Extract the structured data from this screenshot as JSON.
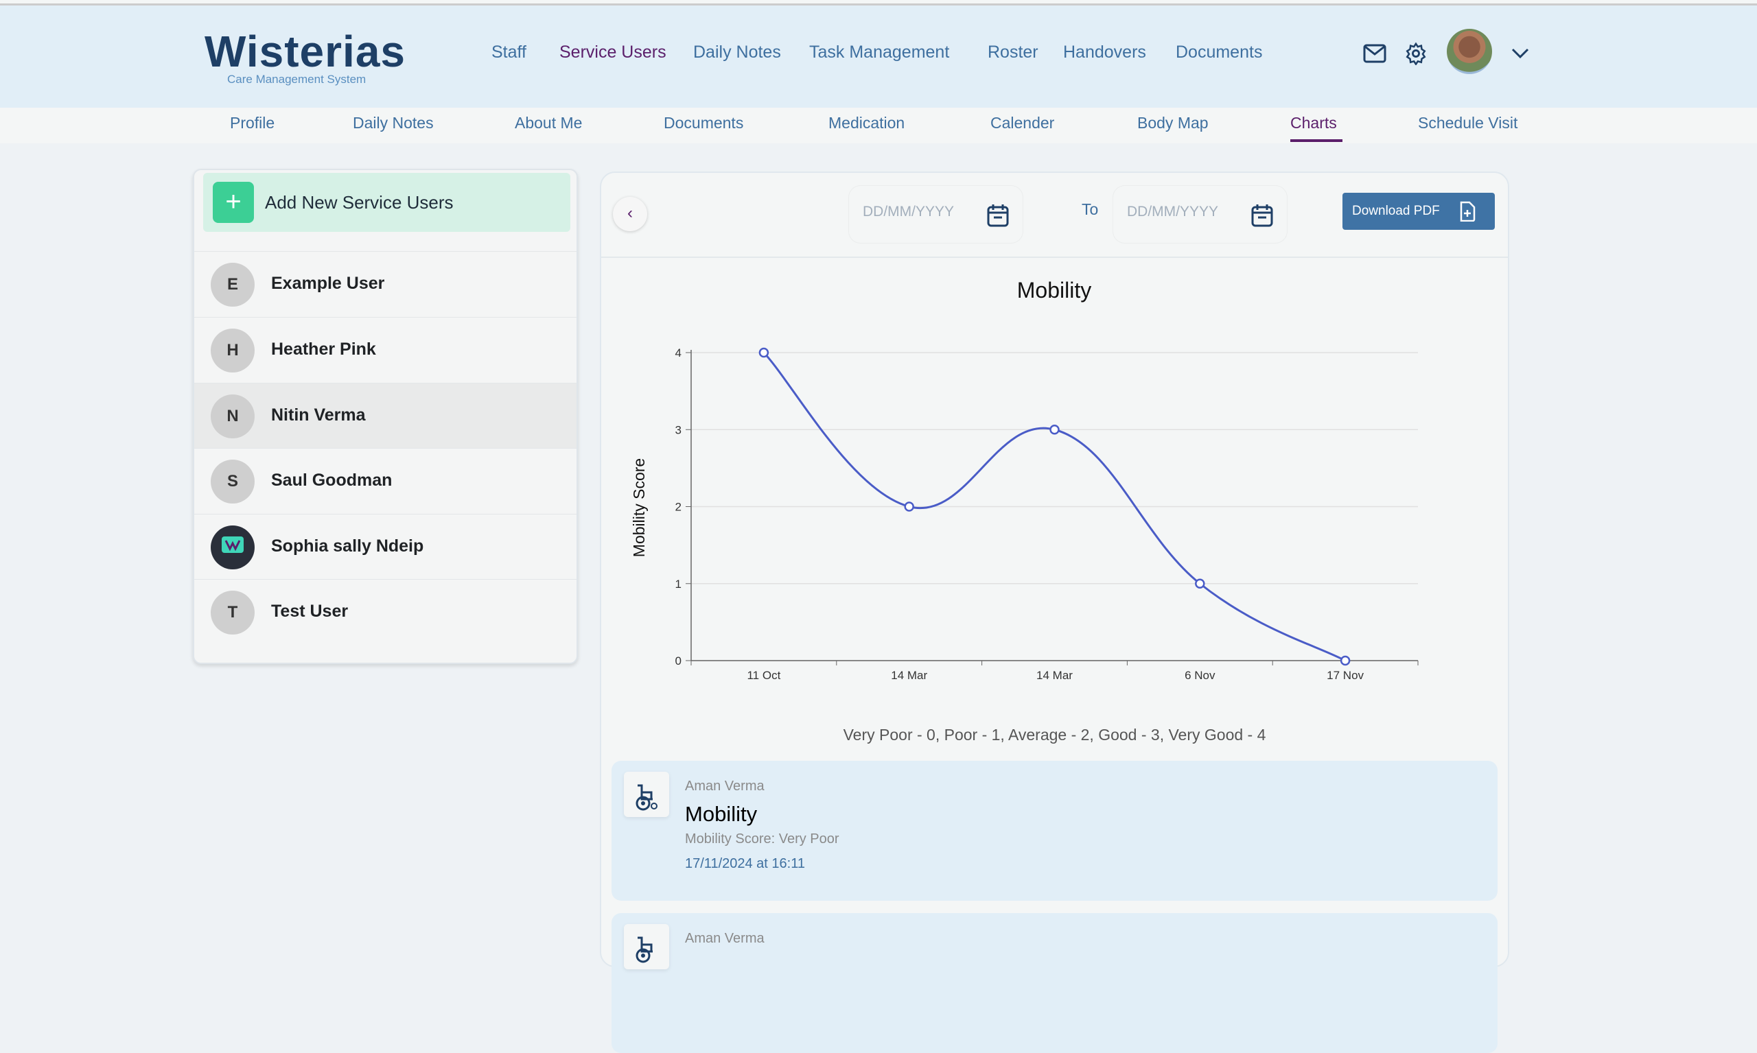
{
  "logo": {
    "name": "Wisterias",
    "tagline": "Care Management System"
  },
  "nav": {
    "items": [
      "Staff",
      "Service Users",
      "Daily Notes",
      "Task Management",
      "Roster",
      "Handovers",
      "Documents"
    ],
    "active": "Service Users"
  },
  "subnav": {
    "items": [
      "Profile",
      "Daily Notes",
      "About Me",
      "Documents",
      "Medication",
      "Calender",
      "Body Map",
      "Charts",
      "Schedule Visit"
    ],
    "active": "Charts"
  },
  "sidebar": {
    "add_label": "Add New Service Users",
    "users": [
      {
        "initial": "E",
        "name": "Example User"
      },
      {
        "initial": "H",
        "name": "Heather Pink"
      },
      {
        "initial": "N",
        "name": "Nitin Verma",
        "selected": true
      },
      {
        "initial": "S",
        "name": "Saul Goodman"
      },
      {
        "initial": "",
        "name": "Sophia sally Ndeip",
        "avatar": "image"
      },
      {
        "initial": "T",
        "name": "Test User"
      }
    ]
  },
  "filters": {
    "from_placeholder": "DD/MM/YYYY",
    "to_label": "To",
    "to_placeholder": "DD/MM/YYYY",
    "download_label": "Download PDF"
  },
  "chart_data": {
    "type": "line",
    "title": "Mobility",
    "xlabel": "",
    "ylabel": "Mobility Score",
    "categories": [
      "11 Oct",
      "14 Mar",
      "14 Mar",
      "6 Nov",
      "17 Nov"
    ],
    "values": [
      4,
      2,
      3,
      1,
      0
    ],
    "ylim": [
      0,
      4
    ],
    "yticks": [
      0,
      1,
      2,
      3,
      4
    ],
    "grid": true,
    "color": "#4a5cc7"
  },
  "scale_legend": "Very Poor - 0, Poor - 1, Average - 2, Good - 3, Very Good - 4",
  "records": [
    {
      "author": "Aman Verma",
      "title": "Mobility",
      "score": "Mobility Score: Very Poor",
      "datetime": "17/11/2024 at 16:11"
    },
    {
      "author": "Aman Verma"
    }
  ],
  "colors": {
    "accent": "#3f73a5",
    "active": "#5b1f6b",
    "add": "#3ccf95"
  }
}
